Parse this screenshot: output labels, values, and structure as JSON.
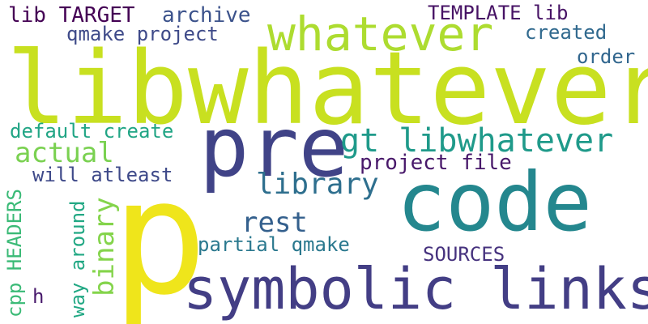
{
  "words": [
    {
      "text": "libwhatever",
      "color": "#c8e020"
    },
    {
      "text": "p",
      "color": "#efe51b"
    },
    {
      "text": "pre",
      "color": "#404387"
    },
    {
      "text": "code",
      "color": "#24878e"
    },
    {
      "text": "symbolic links",
      "color": "#433e85"
    },
    {
      "text": "whatever",
      "color": "#addc30"
    },
    {
      "text": "gt libwhatever",
      "color": "#1f9a8a"
    },
    {
      "text": "library",
      "color": "#2e6f8e"
    },
    {
      "text": "actual",
      "color": "#7ad151"
    },
    {
      "text": "rest",
      "color": "#34608d"
    },
    {
      "text": "binary",
      "color": "#84d44b"
    },
    {
      "text": "project file",
      "color": "#48186a"
    },
    {
      "text": "lib TARGET",
      "color": "#440154"
    },
    {
      "text": "archive",
      "color": "#3b528b"
    },
    {
      "text": "TEMPLATE lib",
      "color": "#471365"
    },
    {
      "text": "qmake project",
      "color": "#3e4a89"
    },
    {
      "text": "created",
      "color": "#30698e"
    },
    {
      "text": "order",
      "color": "#31668e"
    },
    {
      "text": "default create",
      "color": "#21a585"
    },
    {
      "text": "will atleast",
      "color": "#3e4989"
    },
    {
      "text": "partial qmake",
      "color": "#2a788e"
    },
    {
      "text": "SOURCES",
      "color": "#46327e"
    },
    {
      "text": "cpp HEADERS",
      "color": "#3aba76"
    },
    {
      "text": "way around",
      "color": "#22a884"
    },
    {
      "text": "h",
      "color": "#481a6c"
    }
  ]
}
